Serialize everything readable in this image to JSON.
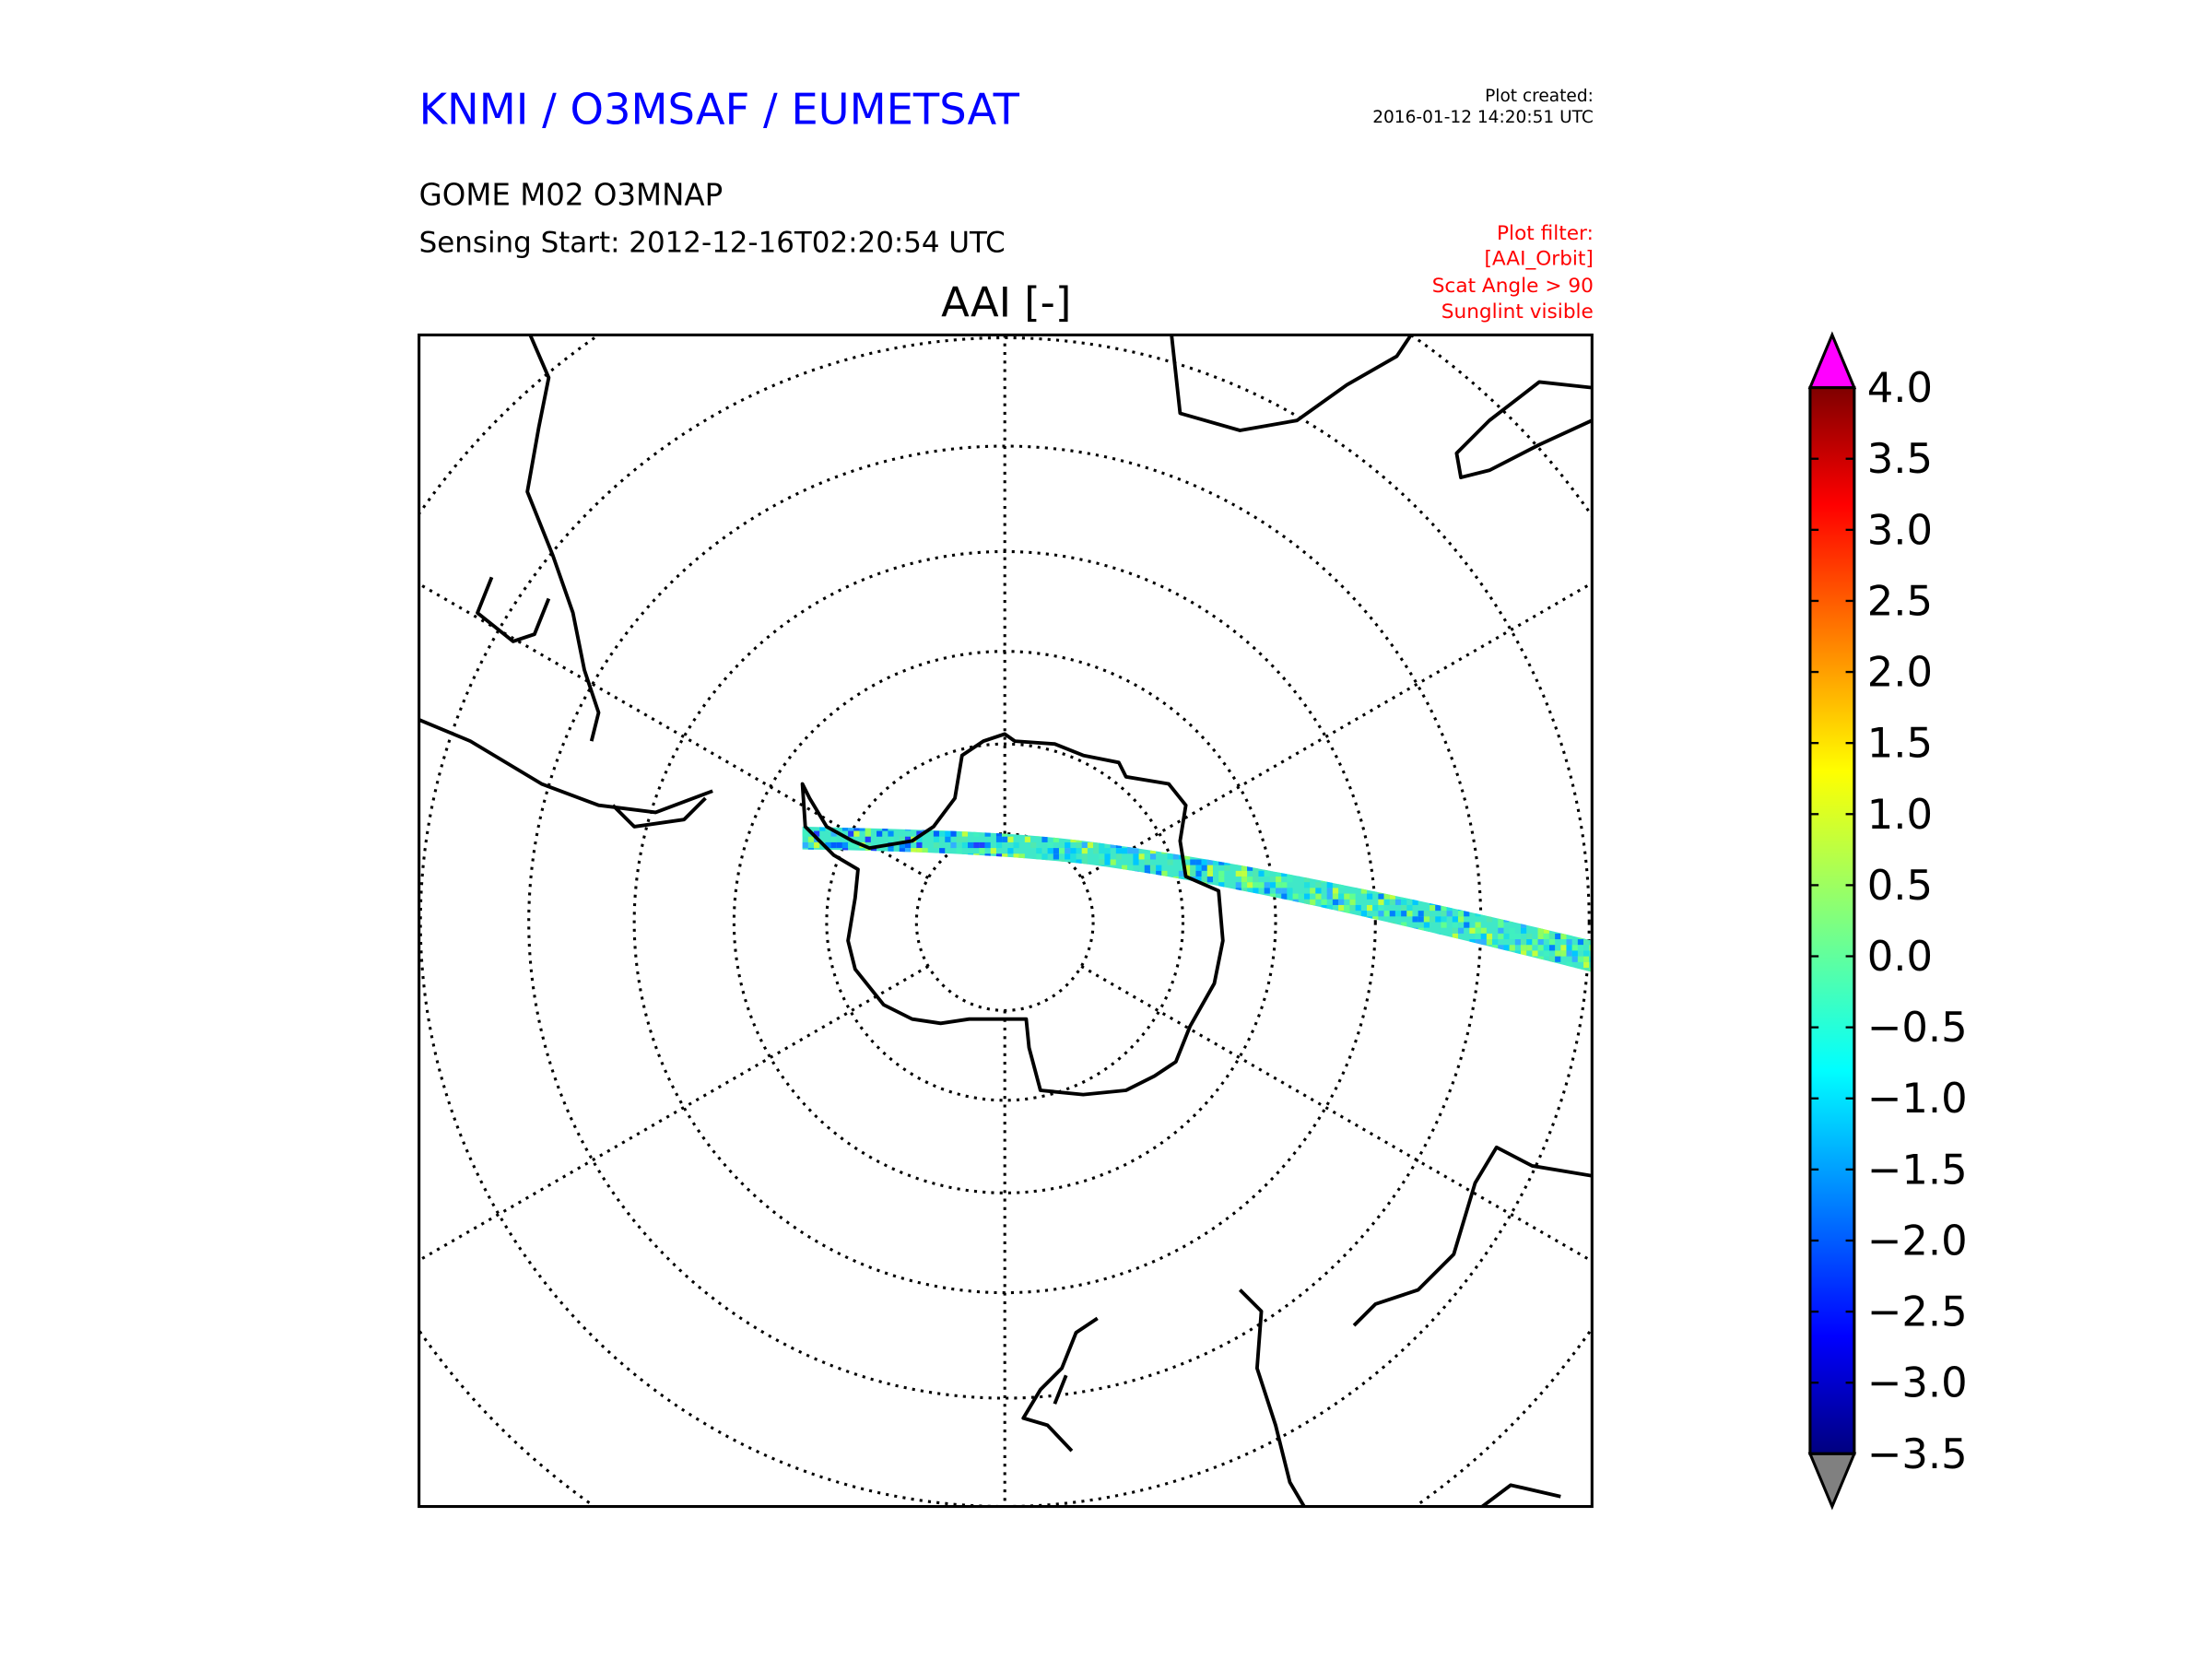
{
  "header": {
    "organization": "KNMI / O3MSAF / EUMETSAT",
    "product": "GOME M02 O3MNAP",
    "sensing_start": "Sensing Start: 2012-12-16T02:20:54 UTC",
    "plot_created_label": "Plot created:",
    "plot_created_value": "2016-01-12 14:20:51 UTC",
    "filter": [
      "Plot filter:",
      "[AAI_Orbit]",
      "Scat Angle > 90",
      "Sunglint visible"
    ]
  },
  "map": {
    "title": "AAI [-]",
    "projection": "south polar stereographic",
    "colors": {
      "title": "#0000ff",
      "filter": "#ff0000",
      "over": "#ff00ff",
      "under": "#808080"
    }
  },
  "colorbar": {
    "min": -3.5,
    "max": 4.0,
    "ticks": [
      "4.0",
      "3.5",
      "3.0",
      "2.5",
      "2.0",
      "1.5",
      "1.0",
      "0.5",
      "0.0",
      "−0.5",
      "−1.0",
      "−1.5",
      "−2.0",
      "−2.5",
      "−3.0",
      "−3.5"
    ],
    "colormap": "jet"
  }
}
